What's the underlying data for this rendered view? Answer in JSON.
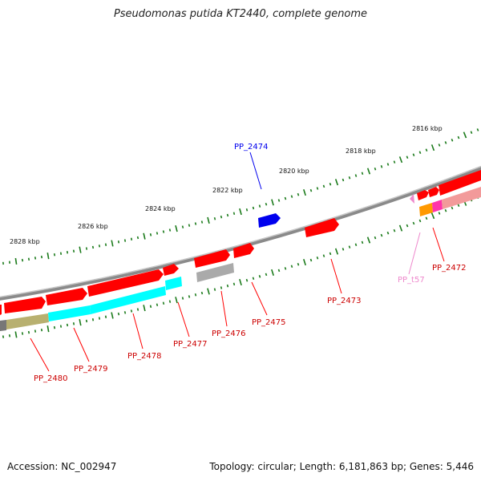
{
  "title": "Pseudomonas putida KT2440, complete genome",
  "footer": {
    "accession": "Accession: NC_002947",
    "summary": "Topology: circular; Length: 6,181,863 bp; Genes: 5,446"
  },
  "colors": {
    "backbone": "#8a8a8a",
    "ticks": "#1a7a1a",
    "gene_red": "#ff0000",
    "gene_blue": "#0000ee",
    "gene_pink": "#ee88cc",
    "cog_cyan": "#00ffff",
    "cog_olive": "#b8b070",
    "cog_gray": "#aaaaaa",
    "cog_orange": "#ff9900",
    "cog_magenta": "#ff33aa"
  },
  "tick_labels": [
    "2816 kbp",
    "2818 kbp",
    "2820 kbp",
    "2822 kbp",
    "2824 kbp",
    "2826 kbp",
    "2828 kbp"
  ],
  "genes": [
    {
      "name": "PP_2472",
      "color": "red"
    },
    {
      "name": "PP_t57",
      "color": "pink"
    },
    {
      "name": "PP_2473",
      "color": "red"
    },
    {
      "name": "PP_2474",
      "color": "blue"
    },
    {
      "name": "PP_2475",
      "color": "red"
    },
    {
      "name": "PP_2476",
      "color": "red"
    },
    {
      "name": "PP_2477",
      "color": "red"
    },
    {
      "name": "PP_2478",
      "color": "red"
    },
    {
      "name": "PP_2479",
      "color": "red"
    },
    {
      "name": "PP_2480",
      "color": "red"
    }
  ]
}
